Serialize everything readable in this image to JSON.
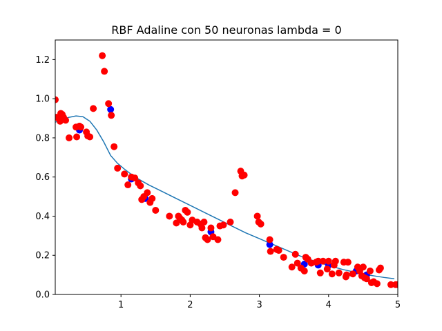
{
  "chart_data": {
    "type": "scatter",
    "title": "RBF Adaline con 50 neuronas lambda = 0",
    "xlabel": "",
    "ylabel": "",
    "xlim": [
      0.05,
      5.0
    ],
    "ylim": [
      0.0,
      1.3
    ],
    "x_ticks": [
      1,
      2,
      3,
      4,
      5
    ],
    "x_tick_labels": [
      "1",
      "2",
      "3",
      "4",
      "5"
    ],
    "y_ticks": [
      0.0,
      0.2,
      0.4,
      0.6,
      0.8,
      1.0,
      1.2
    ],
    "y_tick_labels": [
      "0.0",
      "0.2",
      "0.4",
      "0.6",
      "0.8",
      "1.0",
      "1.2"
    ],
    "grid": false,
    "colors": {
      "red_points": "#ff0000",
      "blue_points": "#0000ff",
      "line": "#1f77b4"
    },
    "series": [
      {
        "style": "line",
        "color": "#1f77b4",
        "x": [
          0.05,
          0.15,
          0.25,
          0.35,
          0.45,
          0.55,
          0.65,
          0.75,
          0.85,
          0.95,
          1.05,
          1.2,
          1.4,
          1.6,
          1.8,
          2.0,
          2.2,
          2.4,
          2.6,
          2.8,
          3.0,
          3.2,
          3.4,
          3.6,
          3.8,
          4.0,
          4.2,
          4.4,
          4.6,
          4.8,
          4.95
        ],
        "y": [
          0.88,
          0.895,
          0.905,
          0.912,
          0.908,
          0.885,
          0.84,
          0.78,
          0.71,
          0.67,
          0.64,
          0.6,
          0.56,
          0.525,
          0.49,
          0.455,
          0.42,
          0.385,
          0.35,
          0.315,
          0.285,
          0.255,
          0.225,
          0.195,
          0.17,
          0.148,
          0.128,
          0.112,
          0.098,
          0.087,
          0.08
        ]
      },
      {
        "style": "points",
        "color": "#0000ff",
        "x": [
          0.4,
          0.85,
          1.15,
          1.35,
          2.3,
          3.15,
          3.65,
          3.85,
          4.0,
          4.4,
          4.55
        ],
        "y": [
          0.84,
          0.945,
          0.59,
          0.49,
          0.32,
          0.255,
          0.155,
          0.15,
          0.15,
          0.12,
          0.1
        ]
      },
      {
        "style": "points",
        "color": "#ff0000",
        "x": [
          0.05,
          0.07,
          0.1,
          0.12,
          0.13,
          0.15,
          0.17,
          0.2,
          0.25,
          0.35,
          0.36,
          0.4,
          0.42,
          0.5,
          0.52,
          0.55,
          0.6,
          0.73,
          0.76,
          0.82,
          0.86,
          0.9,
          0.95,
          1.05,
          1.1,
          1.15,
          1.2,
          1.25,
          1.28,
          1.3,
          1.33,
          1.38,
          1.42,
          1.45,
          1.5,
          1.7,
          1.8,
          1.83,
          1.85,
          1.88,
          1.9,
          1.93,
          1.96,
          2.0,
          2.03,
          2.1,
          2.15,
          2.17,
          2.2,
          2.22,
          2.25,
          2.3,
          2.33,
          2.4,
          2.43,
          2.48,
          2.58,
          2.65,
          2.73,
          2.75,
          2.78,
          2.97,
          2.99,
          3.02,
          3.15,
          3.16,
          3.25,
          3.28,
          3.35,
          3.47,
          3.52,
          3.55,
          3.6,
          3.65,
          3.67,
          3.7,
          3.75,
          3.82,
          3.85,
          3.88,
          3.92,
          3.98,
          4.0,
          4.05,
          4.08,
          4.1,
          4.15,
          4.22,
          4.25,
          4.26,
          4.28,
          4.35,
          4.42,
          4.45,
          4.48,
          4.5,
          4.52,
          4.55,
          4.6,
          4.62,
          4.65,
          4.7,
          4.73,
          4.75,
          4.9,
          4.97,
          5.0
        ],
        "y": [
          0.995,
          0.905,
          0.9,
          0.885,
          0.925,
          0.92,
          0.905,
          0.89,
          0.8,
          0.855,
          0.805,
          0.86,
          0.855,
          0.83,
          0.81,
          0.805,
          0.95,
          1.22,
          1.14,
          0.975,
          0.915,
          0.755,
          0.645,
          0.615,
          0.56,
          0.6,
          0.595,
          0.57,
          0.555,
          0.485,
          0.5,
          0.52,
          0.47,
          0.49,
          0.43,
          0.4,
          0.365,
          0.4,
          0.39,
          0.38,
          0.37,
          0.43,
          0.42,
          0.355,
          0.38,
          0.37,
          0.36,
          0.34,
          0.37,
          0.29,
          0.28,
          0.34,
          0.295,
          0.28,
          0.35,
          0.355,
          0.37,
          0.52,
          0.63,
          0.605,
          0.61,
          0.4,
          0.37,
          0.36,
          0.28,
          0.22,
          0.23,
          0.225,
          0.19,
          0.14,
          0.205,
          0.16,
          0.135,
          0.12,
          0.19,
          0.18,
          0.16,
          0.165,
          0.17,
          0.11,
          0.17,
          0.13,
          0.17,
          0.105,
          0.15,
          0.17,
          0.11,
          0.165,
          0.09,
          0.1,
          0.165,
          0.105,
          0.14,
          0.12,
          0.095,
          0.14,
          0.085,
          0.08,
          0.12,
          0.06,
          0.065,
          0.055,
          0.125,
          0.135,
          0.05,
          0.05,
          0.05
        ]
      }
    ]
  }
}
